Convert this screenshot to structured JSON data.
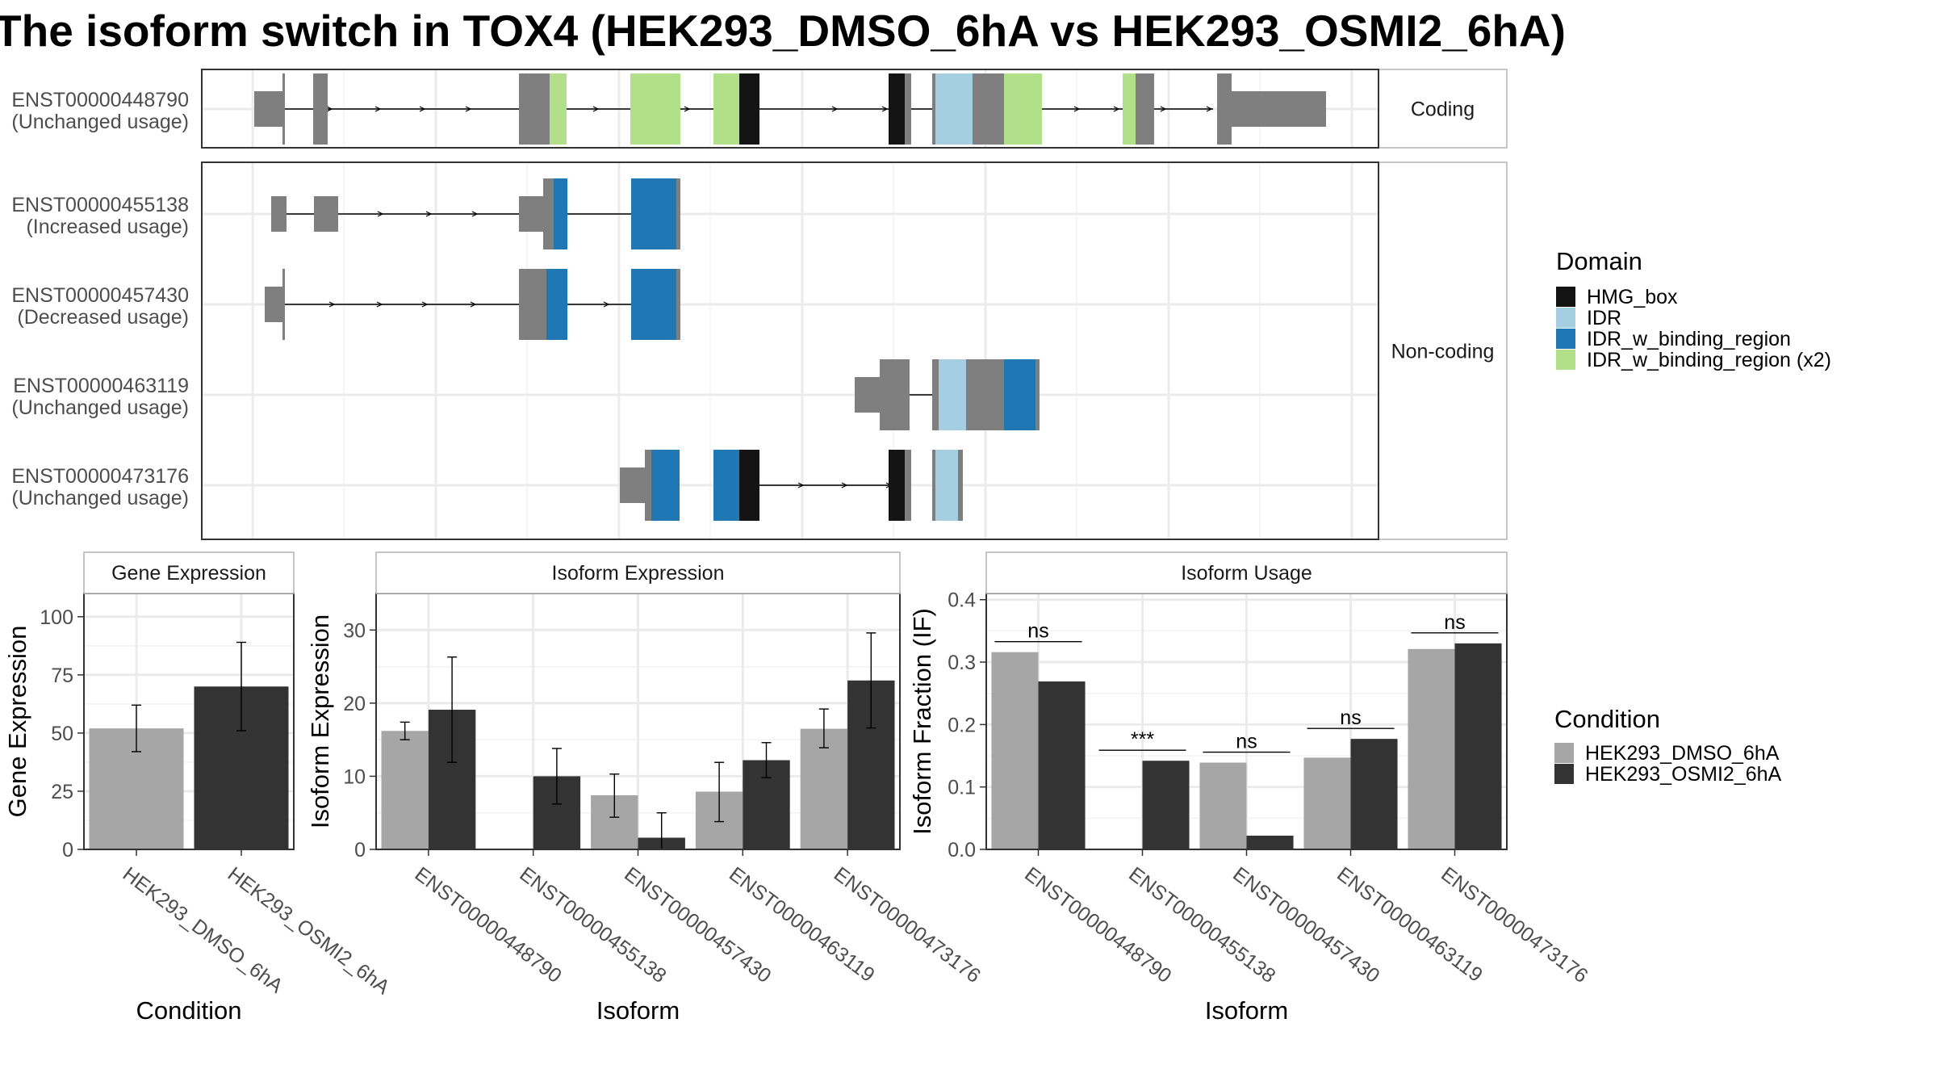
{
  "title": "The isoform switch in TOX4 (HEK293_DMSO_6hA vs HEK293_OSMI2_6hA)",
  "colors": {
    "HMG_box": "#141414",
    "IDR": "#a6cee3",
    "IDR_w_binding_region": "#1f78b4",
    "IDR_w_binding_region (x2)": "#b2df8a",
    "exon": "#7f7f7f",
    "dmso": "#a6a6a6",
    "osmi": "#333333"
  },
  "structure": {
    "facets": [
      "Coding",
      "Non-coding"
    ],
    "isoforms": [
      {
        "id": "ENST00000448790",
        "usage": "(Unchanged usage)",
        "facet": "Coding"
      },
      {
        "id": "ENST00000455138",
        "usage": "(Increased usage)",
        "facet": "Non-coding"
      },
      {
        "id": "ENST00000457430",
        "usage": "(Decreased usage)",
        "facet": "Non-coding"
      },
      {
        "id": "ENST00000463119",
        "usage": "(Unchanged usage)",
        "facet": "Non-coding"
      },
      {
        "id": "ENST00000473176",
        "usage": "(Unchanged usage)",
        "facet": "Non-coding"
      }
    ]
  },
  "legend_domain": {
    "title": "Domain",
    "items": [
      {
        "label": "HMG_box",
        "color": "#141414"
      },
      {
        "label": "IDR",
        "color": "#a6cee3"
      },
      {
        "label": "IDR_w_binding_region",
        "color": "#1f78b4"
      },
      {
        "label": "IDR_w_binding_region (x2)",
        "color": "#b2df8a"
      }
    ]
  },
  "legend_condition": {
    "title": "Condition",
    "items": [
      {
        "label": "HEK293_DMSO_6hA",
        "color": "#a6a6a6"
      },
      {
        "label": "HEK293_OSMI2_6hA",
        "color": "#333333"
      }
    ]
  },
  "chart_data": [
    {
      "type": "bar",
      "title": "Gene Expression",
      "xlabel": "Condition",
      "ylabel": "Gene Expression",
      "ylim": [
        0,
        110
      ],
      "yticks": [
        0,
        25,
        50,
        75,
        100
      ],
      "categories": [
        "HEK293_DMSO_6hA",
        "HEK293_OSMI2_6hA"
      ],
      "values": [
        52,
        70
      ],
      "err_low": [
        42,
        51
      ],
      "err_high": [
        62,
        89
      ]
    },
    {
      "type": "bar",
      "title": "Isoform Expression",
      "xlabel": "Isoform",
      "ylabel": "Isoform Expression",
      "ylim": [
        0,
        35
      ],
      "yticks": [
        0,
        10,
        20,
        30
      ],
      "categories": [
        "ENST00000448790",
        "ENST00000455138",
        "ENST00000457430",
        "ENST00000463119",
        "ENST00000473176"
      ],
      "series": [
        {
          "name": "HEK293_DMSO_6hA",
          "values": [
            16.2,
            0,
            7.4,
            7.9,
            16.5
          ],
          "err_low": [
            15.0,
            0,
            4.4,
            3.8,
            13.9
          ],
          "err_high": [
            17.4,
            0,
            10.3,
            11.9,
            19.2
          ]
        },
        {
          "name": "HEK293_OSMI2_6hA",
          "values": [
            19.1,
            10.0,
            1.6,
            12.2,
            23.1
          ],
          "err_low": [
            11.9,
            6.2,
            0,
            9.8,
            16.6
          ],
          "err_high": [
            26.3,
            13.8,
            5.0,
            14.6,
            29.6
          ]
        }
      ]
    },
    {
      "type": "bar",
      "title": "Isoform Usage",
      "xlabel": "Isoform",
      "ylabel": "Isoform Fraction (IF)",
      "ylim": [
        0,
        0.41
      ],
      "yticks": [
        0.0,
        0.1,
        0.2,
        0.3,
        0.4
      ],
      "ytick_labels": [
        "0.0",
        "0.1",
        "0.2",
        "0.3",
        "0.4"
      ],
      "categories": [
        "ENST00000448790",
        "ENST00000455138",
        "ENST00000457430",
        "ENST00000463119",
        "ENST00000473176"
      ],
      "series": [
        {
          "name": "HEK293_DMSO_6hA",
          "values": [
            0.316,
            0.0,
            0.139,
            0.147,
            0.321
          ]
        },
        {
          "name": "HEK293_OSMI2_6hA",
          "values": [
            0.269,
            0.142,
            0.022,
            0.177,
            0.33
          ]
        }
      ],
      "significance": [
        "ns",
        "***",
        "ns",
        "ns",
        "ns"
      ]
    }
  ]
}
